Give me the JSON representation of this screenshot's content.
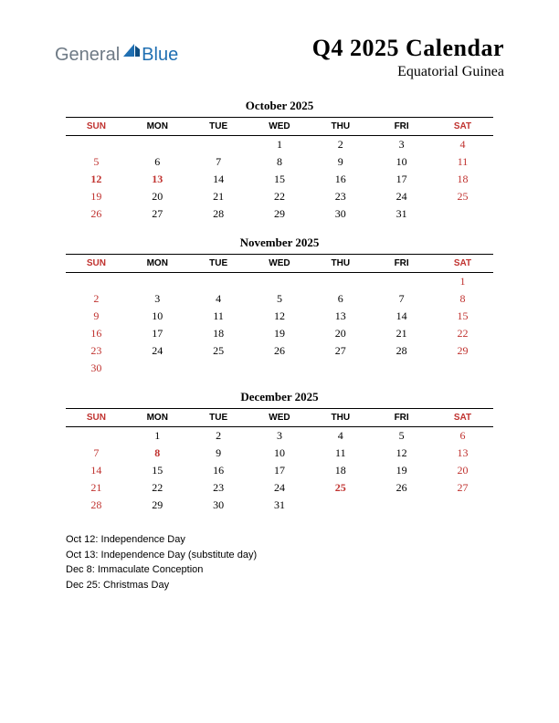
{
  "logo": {
    "text1": "General",
    "text2": "Blue",
    "color1": "#6e7a85",
    "color2": "#1f6fb2"
  },
  "title": "Q4 2025 Calendar",
  "subtitle": "Equatorial Guinea",
  "colors": {
    "weekend": "#c0322f",
    "text": "#000000",
    "background": "#ffffff",
    "border": "#000000"
  },
  "day_headers": [
    "SUN",
    "MON",
    "TUE",
    "WED",
    "THU",
    "FRI",
    "SAT"
  ],
  "months": [
    {
      "title": "October 2025",
      "weeks": [
        [
          "",
          "",
          "",
          "1",
          "2",
          "3",
          "4"
        ],
        [
          "5",
          "6",
          "7",
          "8",
          "9",
          "10",
          "11"
        ],
        [
          "12",
          "13",
          "14",
          "15",
          "16",
          "17",
          "18"
        ],
        [
          "19",
          "20",
          "21",
          "22",
          "23",
          "24",
          "25"
        ],
        [
          "26",
          "27",
          "28",
          "29",
          "30",
          "31",
          ""
        ]
      ],
      "holidays_idx": [
        [
          2,
          0
        ],
        [
          2,
          1
        ]
      ]
    },
    {
      "title": "November 2025",
      "weeks": [
        [
          "",
          "",
          "",
          "",
          "",
          "",
          "1"
        ],
        [
          "2",
          "3",
          "4",
          "5",
          "6",
          "7",
          "8"
        ],
        [
          "9",
          "10",
          "11",
          "12",
          "13",
          "14",
          "15"
        ],
        [
          "16",
          "17",
          "18",
          "19",
          "20",
          "21",
          "22"
        ],
        [
          "23",
          "24",
          "25",
          "26",
          "27",
          "28",
          "29"
        ],
        [
          "30",
          "",
          "",
          "",
          "",
          "",
          ""
        ]
      ],
      "holidays_idx": []
    },
    {
      "title": "December 2025",
      "weeks": [
        [
          "",
          "1",
          "2",
          "3",
          "4",
          "5",
          "6"
        ],
        [
          "7",
          "8",
          "9",
          "10",
          "11",
          "12",
          "13"
        ],
        [
          "14",
          "15",
          "16",
          "17",
          "18",
          "19",
          "20"
        ],
        [
          "21",
          "22",
          "23",
          "24",
          "25",
          "26",
          "27"
        ],
        [
          "28",
          "29",
          "30",
          "31",
          "",
          "",
          ""
        ]
      ],
      "holidays_idx": [
        [
          1,
          1
        ],
        [
          3,
          4
        ]
      ]
    }
  ],
  "holidays_list": [
    "Oct 12: Independence Day",
    "Oct 13: Independence Day (substitute day)",
    "Dec 8: Immaculate Conception",
    "Dec 25: Christmas Day"
  ]
}
